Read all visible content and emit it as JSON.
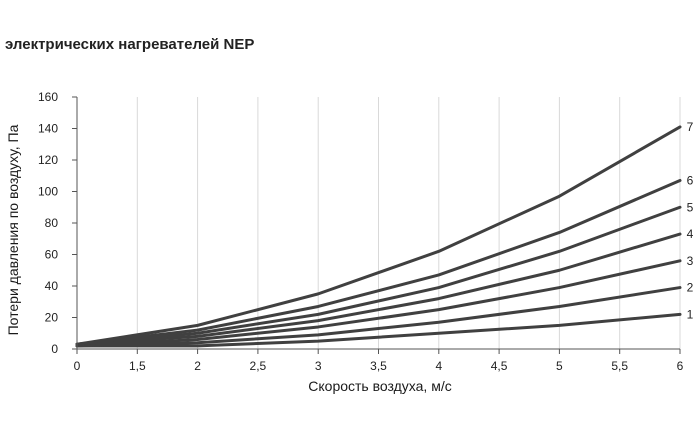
{
  "title": "электрических нагревателей NEP",
  "chart_data": {
    "type": "line",
    "title": "электрических нагревателей NEP",
    "xlabel": "Скорость воздуха, м/с",
    "ylabel": "Потери давления по воздуху, Па",
    "x_ticks": [
      "0",
      "1,5",
      "2",
      "2,5",
      "3",
      "3,5",
      "4",
      "4,5",
      "5",
      "5,5",
      "6"
    ],
    "y_ticks": [
      "0",
      "20",
      "40",
      "60",
      "80",
      "100",
      "120",
      "140",
      "160"
    ],
    "ylim": [
      0,
      160
    ],
    "grid": "vertical",
    "x": [
      1,
      2,
      3,
      4,
      5,
      6
    ],
    "series": [
      {
        "name": "1",
        "values": [
          2,
          2,
          5,
          10,
          15,
          22
        ]
      },
      {
        "name": "2",
        "values": [
          2,
          4,
          9,
          17,
          27,
          39
        ]
      },
      {
        "name": "3",
        "values": [
          2,
          6,
          14,
          25,
          39,
          56
        ]
      },
      {
        "name": "4",
        "values": [
          3,
          8,
          18,
          32,
          50,
          73
        ]
      },
      {
        "name": "5",
        "values": [
          3,
          10,
          22,
          39,
          62,
          90
        ]
      },
      {
        "name": "6",
        "values": [
          3,
          12,
          27,
          47,
          74,
          107
        ]
      },
      {
        "name": "7",
        "values": [
          3,
          15,
          35,
          62,
          97,
          141
        ]
      }
    ],
    "line_color": "#404040"
  }
}
